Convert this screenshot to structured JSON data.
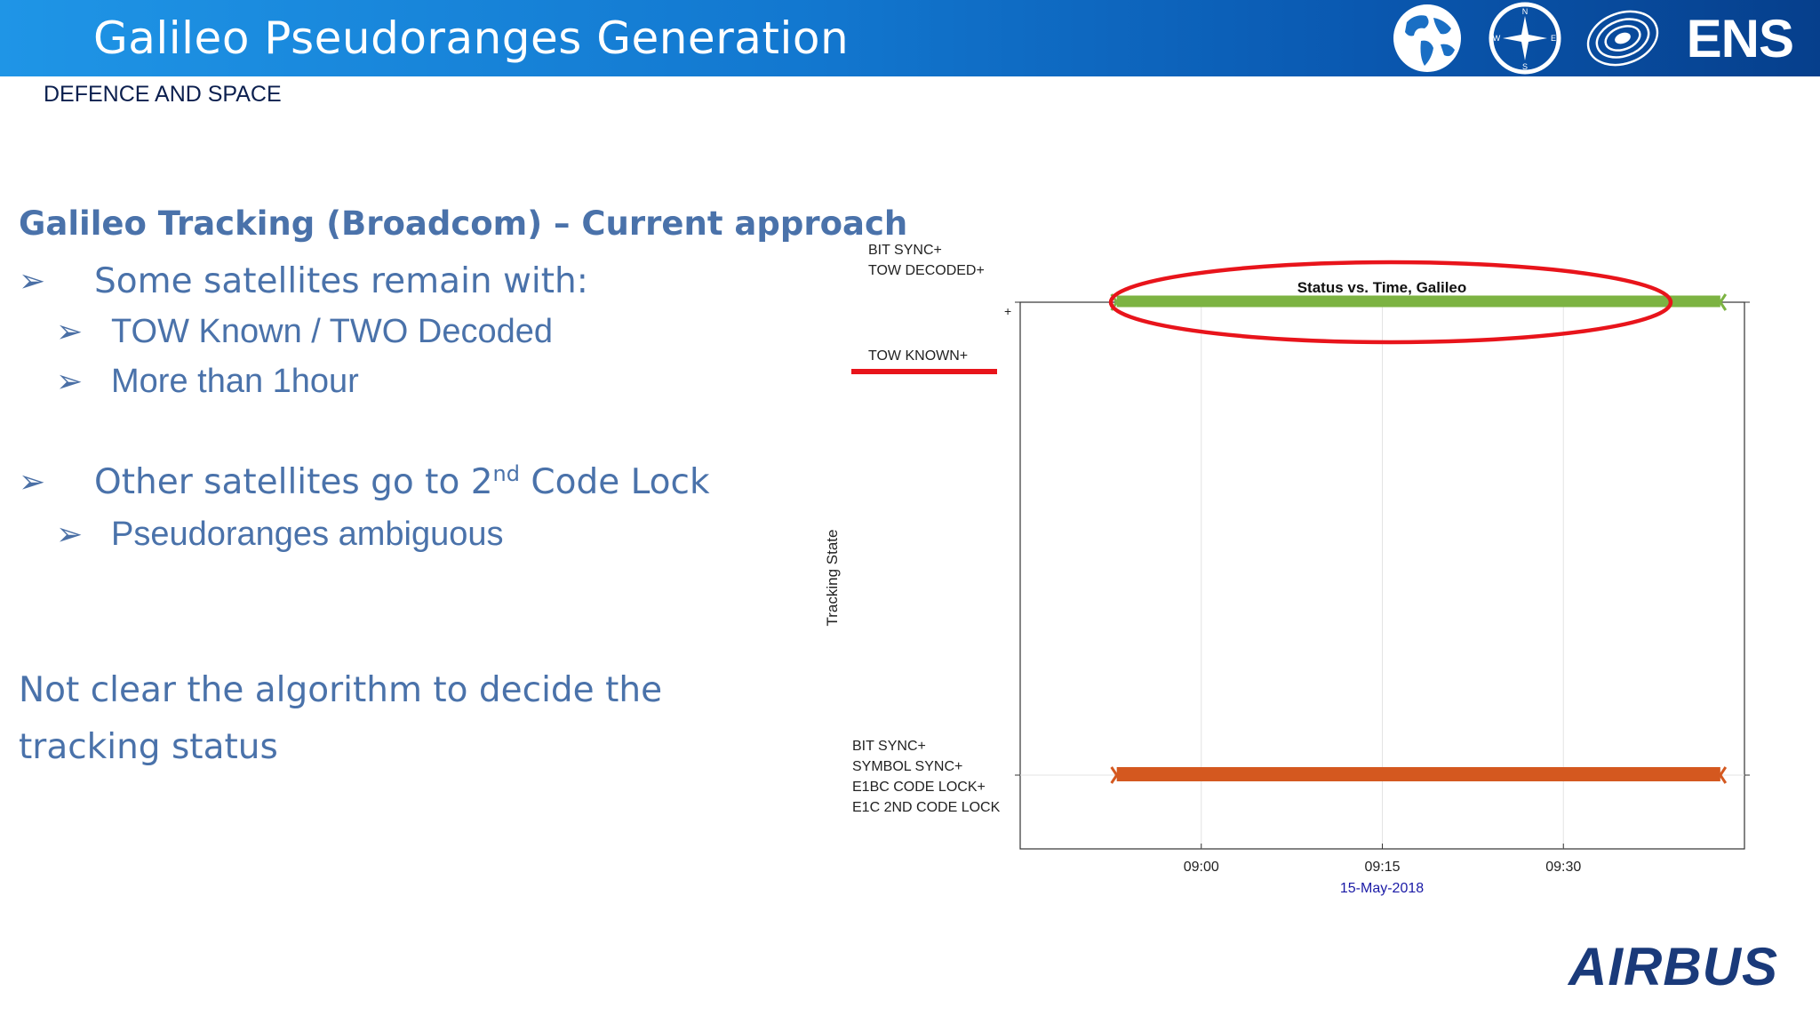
{
  "header": {
    "title": "Galileo Pseudoranges Generation",
    "logos": [
      "globe-icon",
      "compass-icon",
      "galaxy-icon"
    ],
    "ens_text": "ENS",
    "colors": {
      "banner_start": "#1f95e6",
      "banner_end": "#063f8c"
    }
  },
  "division": "DEFENCE AND SPACE",
  "content": {
    "heading": "Galileo Tracking (Broadcom) – Current approach",
    "bullet1": "Some satellites remain with:",
    "bullet1_sub1": "TOW Known / TWO Decoded",
    "bullet1_sub2": "More than 1hour",
    "bullet2_pre": "Other satellites go to 2",
    "bullet2_sup": "nd",
    "bullet2_post": " Code Lock",
    "bullet2_sub1": "Pseudoranges ambiguous",
    "conclusion": "Not clear the algorithm to decide the tracking status"
  },
  "chart_data": {
    "type": "line",
    "title": "Status vs. Time, Galileo",
    "ylabel": "Tracking State",
    "xlabel": "15-May-2018",
    "x_ticks": [
      "09:00",
      "09:15",
      "09:30"
    ],
    "y_ticks": [
      {
        "level": 2,
        "lines": [
          "BIT SYNC+",
          "TOW DECODED+"
        ],
        "tick": "+"
      },
      {
        "level": 1,
        "lines": [
          "TOW KNOWN+"
        ],
        "tick": ""
      },
      {
        "level": 0,
        "lines": [
          "BIT SYNC+",
          "SYMBOL SYNC+",
          "E1BC CODE LOCK+",
          "E1C 2ND CODE LOCK"
        ],
        "tick": ""
      }
    ],
    "xlim": [
      "08:45",
      "09:45"
    ],
    "series": [
      {
        "color": "#7cb342",
        "level": 2,
        "x_start": "08:53",
        "x_end": "09:43"
      },
      {
        "color": "#d4581f",
        "level": 0,
        "x_start": "08:53",
        "x_end": "09:43"
      }
    ],
    "annotations": {
      "highlight_color": "#e8141b"
    }
  },
  "footer": {
    "logo": "AIRBUS"
  }
}
